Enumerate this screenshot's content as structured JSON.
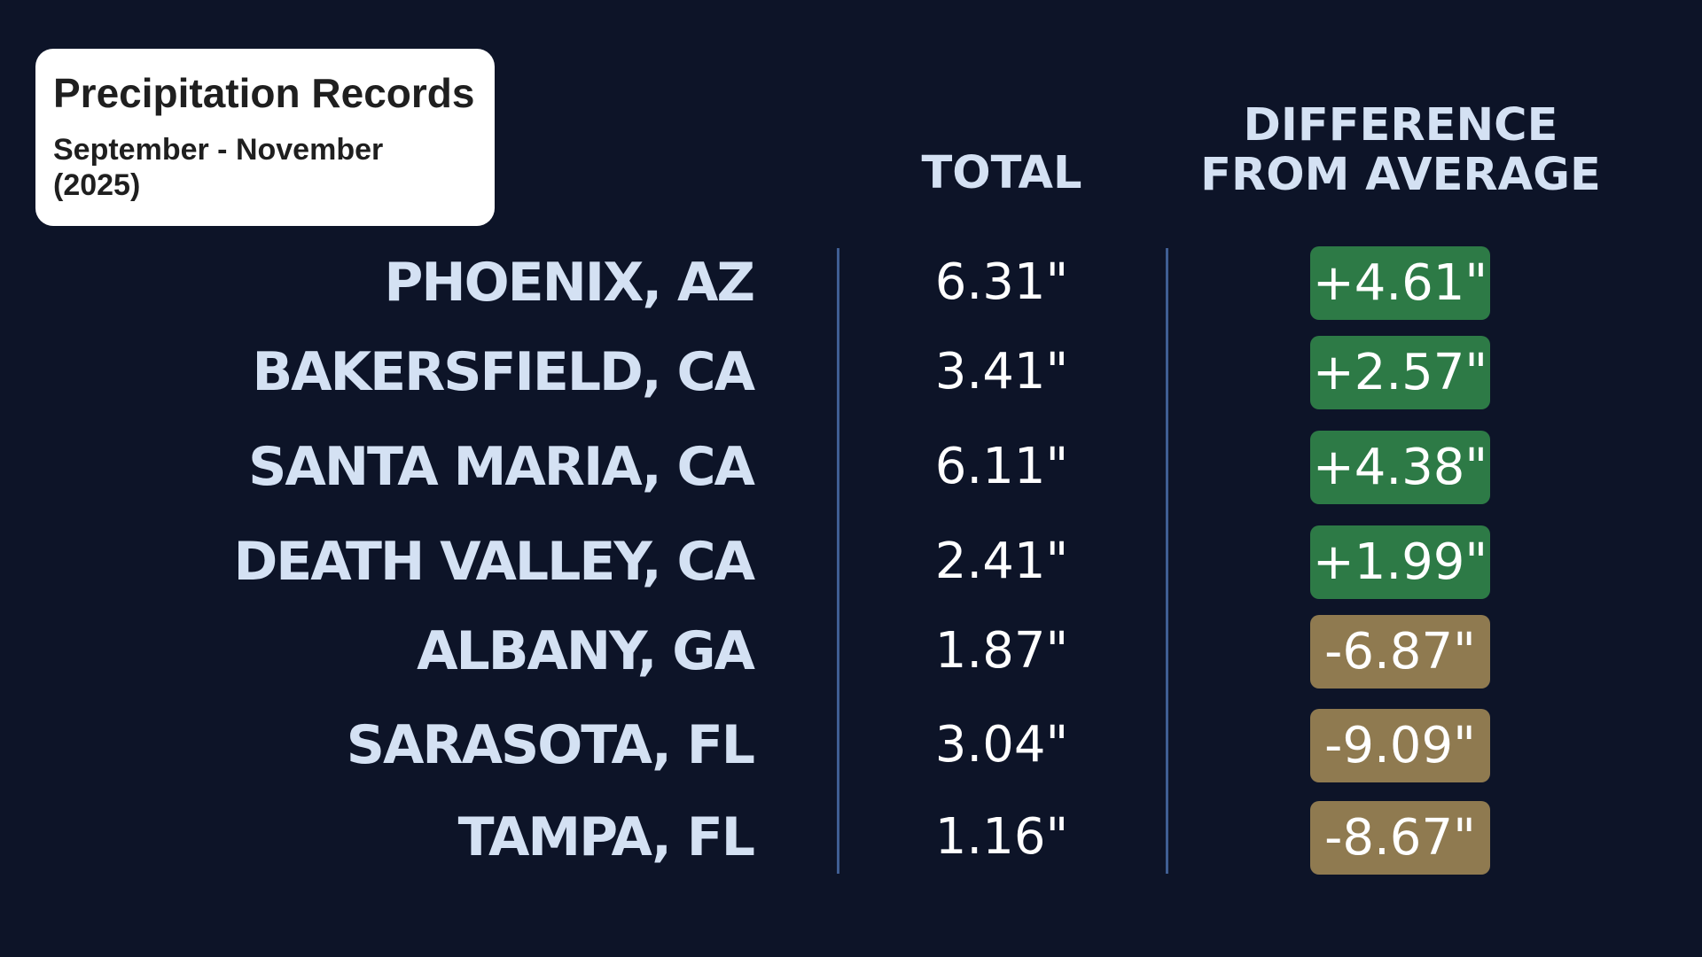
{
  "title": "Precipitation Records",
  "subtitle": "September - November (2025)",
  "colors": {
    "background": "#0d1428",
    "label": "#d4e1f3",
    "positive": "#2d7a46",
    "negative": "#8f7a50",
    "divider": "#3f5e93"
  },
  "chart_data": {
    "type": "table",
    "title": "Precipitation Records",
    "subtitle": "September - November (2025)",
    "columns": [
      "TOTAL",
      "DIFFERENCE FROM AVERAGE"
    ],
    "column_header_lines": {
      "total": [
        "TOTAL"
      ],
      "difference": [
        "DIFFERENCE",
        "FROM AVERAGE"
      ]
    },
    "rows": [
      {
        "city": "PHOENIX, AZ",
        "total": "6.31\"",
        "difference": "+4.61\"",
        "total_in": 6.31,
        "difference_in": 4.61
      },
      {
        "city": "BAKERSFIELD, CA",
        "total": "3.41\"",
        "difference": "+2.57\"",
        "total_in": 3.41,
        "difference_in": 2.57
      },
      {
        "city": "SANTA MARIA, CA",
        "total": "6.11\"",
        "difference": "+4.38\"",
        "total_in": 6.11,
        "difference_in": 4.38
      },
      {
        "city": "DEATH VALLEY, CA",
        "total": "2.41\"",
        "difference": "+1.99\"",
        "total_in": 2.41,
        "difference_in": 1.99
      },
      {
        "city": "ALBANY, GA",
        "total": "1.87\"",
        "difference": "-6.87\"",
        "total_in": 1.87,
        "difference_in": -6.87
      },
      {
        "city": "SARASOTA, FL",
        "total": "3.04\"",
        "difference": "-9.09\"",
        "total_in": 3.04,
        "difference_in": -9.09
      },
      {
        "city": "TAMPA, FL",
        "total": "1.16\"",
        "difference": "-8.67\"",
        "total_in": 1.16,
        "difference_in": -8.67
      }
    ]
  }
}
